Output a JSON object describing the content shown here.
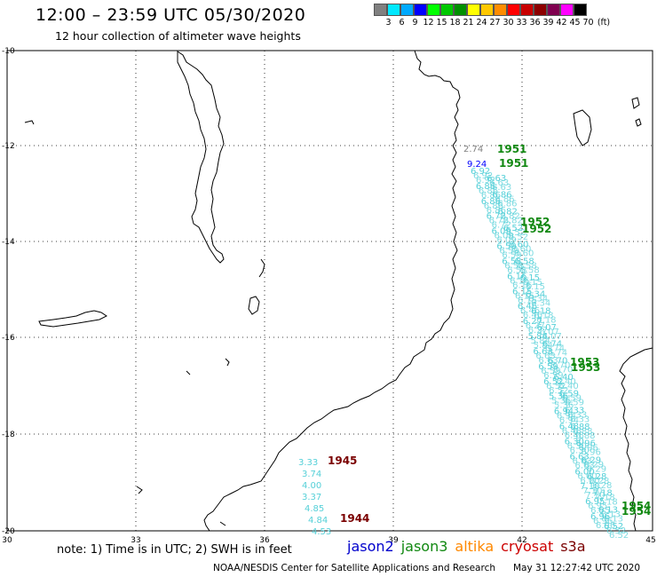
{
  "header": {
    "title": "12:00 – 23:59 UTC 05/30/2020",
    "subtitle": "12 hour collection of altimeter wave heights"
  },
  "color_scale": {
    "labels": [
      "3",
      "6",
      "9",
      "12",
      "15",
      "18",
      "21",
      "24",
      "27",
      "30",
      "33",
      "36",
      "39",
      "42",
      "45",
      "70",
      "(ft)"
    ],
    "colors": [
      "#808080",
      "#00e8ff",
      "#00aaff",
      "#0000ff",
      "#00ff00",
      "#00c800",
      "#009000",
      "#ffff00",
      "#ffc800",
      "#ff8c00",
      "#ff0000",
      "#c80000",
      "#8c0000",
      "#800050",
      "#ff00ff",
      "#000000"
    ]
  },
  "map": {
    "lon_labels": [
      "30",
      "33",
      "36",
      "39",
      "42",
      "45"
    ],
    "lat_labels": [
      "-10",
      "-12",
      "-14",
      "-16",
      "-18",
      "-20"
    ],
    "track_color": "#55d0d8",
    "pass_labels": [
      {
        "text": "1951",
        "color": "#118811"
      },
      {
        "text": "1951",
        "color": "#118811"
      },
      {
        "text": "1952",
        "color": "#118811"
      },
      {
        "text": "1952",
        "color": "#118811"
      },
      {
        "text": "1953",
        "color": "#118811"
      },
      {
        "text": "1953",
        "color": "#118811"
      },
      {
        "text": "1954",
        "color": "#118811"
      },
      {
        "text": "1954",
        "color": "#118811"
      },
      {
        "text": "1945",
        "color": "#7a0000"
      },
      {
        "text": "1944",
        "color": "#7a0000"
      }
    ],
    "values_top": [
      {
        "text": "2.74",
        "color": "#808080"
      },
      {
        "text": "9.24",
        "color": "#0000ff"
      }
    ],
    "values_sw": [
      "3.33",
      "3.74",
      "4.00",
      "3.37",
      "4.85",
      "4.84",
      "4.53"
    ],
    "values_track_left": [
      "6.92",
      "6.86",
      "6.86",
      "6.72",
      "6.09",
      "6.59",
      "6.58",
      "6.16",
      "6.15",
      "6.46",
      "6.27",
      "5.84",
      "6.63",
      "6.59",
      "6.52",
      "5.36",
      "6.94",
      "6.48",
      "6.30",
      "6.63",
      "6.00",
      "7.10",
      "6.95",
      "6.96"
    ],
    "values_track_right": [
      "6.63",
      "6.86",
      "6.82",
      "6.52",
      "6.60",
      "6.58",
      "6.15",
      "6.34",
      "6.18",
      "6.07",
      "6.74",
      "6.70",
      "6.40",
      "6.59",
      "6.33",
      "6.88",
      "6.96",
      "6.29",
      "6.28",
      "7.18",
      "6.13",
      "6.52"
    ]
  },
  "note": "note: 1) Time is in UTC; 2) SWH is in feet",
  "satellites": [
    {
      "name": "jason2",
      "color": "#0000cc"
    },
    {
      "name": "jason3",
      "color": "#118811"
    },
    {
      "name": "altika",
      "color": "#ff8800"
    },
    {
      "name": "cryosat",
      "color": "#cc0000"
    },
    {
      "name": "s3a",
      "color": "#7a0000"
    }
  ],
  "footer": {
    "credit": "NOAA/NESDIS Center for Satellite Applications and Research",
    "timestamp": "May 31 12:27:42 UTC 2020"
  }
}
